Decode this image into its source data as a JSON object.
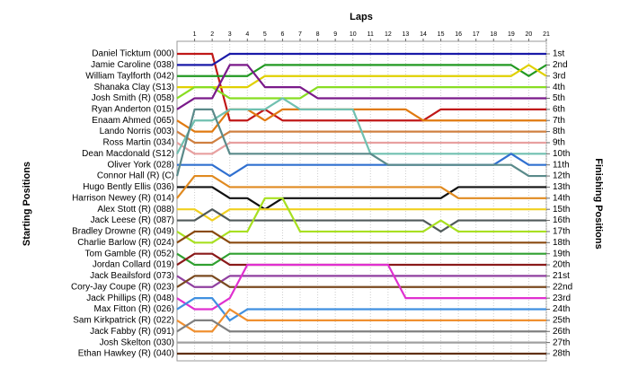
{
  "chart_data": {
    "type": "line",
    "title": "Laps",
    "y_label": "Starting Positions",
    "y2_label": "Finishing Positions",
    "x": [
      0,
      1,
      2,
      3,
      4,
      5,
      6,
      7,
      8,
      9,
      10,
      11,
      12,
      13,
      14,
      15,
      16,
      17,
      18,
      19,
      20,
      21
    ],
    "xlim": [
      0,
      21
    ],
    "xticks": [
      1,
      2,
      3,
      4,
      5,
      6,
      7,
      8,
      9,
      10,
      11,
      12,
      13,
      14,
      15,
      16,
      17,
      18,
      19,
      20,
      21
    ],
    "ylim": [
      1,
      28
    ],
    "grid": true,
    "y2ticks": [
      {
        "value": 1,
        "label": "1st"
      },
      {
        "value": 2,
        "label": "2nd"
      },
      {
        "value": 3,
        "label": "3rd"
      },
      {
        "value": 4,
        "label": "4th"
      },
      {
        "value": 5,
        "label": "5th"
      },
      {
        "value": 6,
        "label": "6th"
      },
      {
        "value": 7,
        "label": "7th"
      },
      {
        "value": 8,
        "label": "8th"
      },
      {
        "value": 9,
        "label": "9th"
      },
      {
        "value": 10,
        "label": "10th"
      },
      {
        "value": 11,
        "label": "11th"
      },
      {
        "value": 12,
        "label": "12th"
      },
      {
        "value": 13,
        "label": "13th"
      },
      {
        "value": 14,
        "label": "14th"
      },
      {
        "value": 15,
        "label": "15th"
      },
      {
        "value": 16,
        "label": "16th"
      },
      {
        "value": 17,
        "label": "17th"
      },
      {
        "value": 18,
        "label": "18th"
      },
      {
        "value": 19,
        "label": "19th"
      },
      {
        "value": 20,
        "label": "20th"
      },
      {
        "value": 21,
        "label": "21st"
      },
      {
        "value": 22,
        "label": "22nd"
      },
      {
        "value": 23,
        "label": "23rd"
      },
      {
        "value": 24,
        "label": "24th"
      },
      {
        "value": 25,
        "label": "25th"
      },
      {
        "value": 26,
        "label": "26th"
      },
      {
        "value": 27,
        "label": "27th"
      },
      {
        "value": 28,
        "label": "28th"
      }
    ],
    "series": [
      {
        "name": "Daniel Ticktum (000)",
        "color": "#c01818",
        "values": [
          1,
          1,
          1,
          7,
          7,
          6,
          7,
          7,
          7,
          7,
          7,
          7,
          7,
          7,
          7,
          6,
          6,
          6,
          6,
          6,
          6,
          6
        ]
      },
      {
        "name": "Jamie Caroline (038)",
        "color": "#1a1aa8",
        "values": [
          2,
          2,
          2,
          1,
          1,
          1,
          1,
          1,
          1,
          1,
          1,
          1,
          1,
          1,
          1,
          1,
          1,
          1,
          1,
          1,
          1,
          1
        ]
      },
      {
        "name": "William Taylforth (042)",
        "color": "#229922",
        "values": [
          3,
          3,
          3,
          3,
          3,
          2,
          2,
          2,
          2,
          2,
          2,
          2,
          2,
          2,
          2,
          2,
          2,
          2,
          2,
          2,
          3,
          2
        ]
      },
      {
        "name": "Shanaka Clay (S13)",
        "color": "#e0d000",
        "values": [
          4,
          4,
          4,
          4,
          4,
          3,
          3,
          3,
          3,
          3,
          3,
          3,
          3,
          3,
          3,
          3,
          3,
          3,
          3,
          3,
          2,
          3
        ]
      },
      {
        "name": "Josh Smith (R) (058)",
        "color": "#88dd22",
        "values": [
          5,
          4,
          4,
          5,
          5,
          5,
          5,
          5,
          4,
          4,
          4,
          4,
          4,
          4,
          4,
          4,
          4,
          4,
          4,
          4,
          4,
          4
        ]
      },
      {
        "name": "Ryan Anderton (015)",
        "color": "#7a1a8a",
        "values": [
          6,
          5,
          5,
          2,
          2,
          4,
          4,
          4,
          5,
          5,
          5,
          5,
          5,
          5,
          5,
          5,
          5,
          5,
          5,
          5,
          5,
          5
        ]
      },
      {
        "name": "Enaam Ahmed (065)",
        "color": "#e07a10",
        "values": [
          7,
          8,
          8,
          6,
          6,
          7,
          6,
          6,
          6,
          6,
          6,
          6,
          6,
          6,
          7,
          7,
          7,
          7,
          7,
          7,
          7,
          7
        ]
      },
      {
        "name": "Lando Norris (003)",
        "color": "#d08040",
        "values": [
          8,
          9,
          9,
          8,
          8,
          8,
          8,
          8,
          8,
          8,
          8,
          8,
          8,
          8,
          8,
          8,
          8,
          8,
          8,
          8,
          8,
          8
        ]
      },
      {
        "name": "Ross Martin (034)",
        "color": "#e8a0a0",
        "values": [
          9,
          10,
          10,
          9,
          9,
          9,
          9,
          9,
          9,
          9,
          9,
          9,
          9,
          9,
          9,
          9,
          9,
          9,
          9,
          9,
          9,
          9
        ]
      },
      {
        "name": "Dean Macdonald (S12)",
        "color": "#70c0b0",
        "values": [
          10,
          7,
          7,
          6,
          6,
          6,
          5,
          6,
          6,
          6,
          6,
          10,
          10,
          10,
          10,
          10,
          10,
          10,
          10,
          10,
          10,
          10
        ]
      },
      {
        "name": "Oliver York (028)",
        "color": "#3070d0",
        "values": [
          11,
          11,
          11,
          12,
          11,
          11,
          11,
          11,
          11,
          11,
          11,
          11,
          11,
          11,
          11,
          11,
          11,
          11,
          11,
          10,
          11,
          11
        ]
      },
      {
        "name": "Connor Hall (R) (C)",
        "color": "#5a8a8a",
        "values": [
          12,
          6,
          6,
          10,
          10,
          10,
          10,
          10,
          10,
          10,
          10,
          10,
          11,
          11,
          11,
          11,
          11,
          11,
          11,
          11,
          12,
          12
        ]
      },
      {
        "name": "Hugo Bently Ellis (036)",
        "color": "#111111",
        "values": [
          13,
          13,
          13,
          14,
          14,
          15,
          14,
          14,
          14,
          14,
          14,
          14,
          14,
          14,
          14,
          14,
          13,
          13,
          13,
          13,
          13,
          13
        ]
      },
      {
        "name": "Harrison Newey (R) (014)",
        "color": "#e08a20",
        "values": [
          14,
          12,
          12,
          13,
          13,
          13,
          13,
          13,
          13,
          13,
          13,
          13,
          13,
          13,
          13,
          13,
          14,
          14,
          14,
          14,
          14,
          14
        ]
      },
      {
        "name": "Alex Stott (R) (088)",
        "color": "#f0d020",
        "values": [
          15,
          15,
          16,
          15,
          15,
          15,
          15,
          15,
          15,
          15,
          15,
          15,
          15,
          15,
          15,
          15,
          15,
          15,
          15,
          15,
          15,
          15
        ]
      },
      {
        "name": "Jack Leese (R) (087)",
        "color": "#505a5a",
        "values": [
          16,
          16,
          15,
          16,
          16,
          16,
          16,
          16,
          16,
          16,
          16,
          16,
          16,
          16,
          16,
          17,
          16,
          16,
          16,
          16,
          16,
          16
        ]
      },
      {
        "name": "Bradley Drowne (R) (049)",
        "color": "#a8e020",
        "values": [
          17,
          18,
          18,
          17,
          17,
          14,
          14,
          17,
          17,
          17,
          17,
          17,
          17,
          17,
          17,
          16,
          17,
          17,
          17,
          17,
          17,
          17
        ]
      },
      {
        "name": "Charlie Barlow (R) (024)",
        "color": "#8a4a10",
        "values": [
          18,
          17,
          17,
          18,
          18,
          18,
          18,
          18,
          18,
          18,
          18,
          18,
          18,
          18,
          18,
          18,
          18,
          18,
          18,
          18,
          18,
          18
        ]
      },
      {
        "name": "Tom Gamble (R) (052)",
        "color": "#30a030",
        "values": [
          19,
          20,
          20,
          19,
          19,
          19,
          19,
          19,
          19,
          19,
          19,
          19,
          19,
          19,
          19,
          19,
          19,
          19,
          19,
          19,
          19,
          19
        ]
      },
      {
        "name": "Jordan Collard (019)",
        "color": "#8a1a1a",
        "values": [
          20,
          19,
          19,
          20,
          20,
          20,
          20,
          20,
          20,
          20,
          20,
          20,
          20,
          20,
          20,
          20,
          20,
          20,
          20,
          20,
          20,
          20
        ]
      },
      {
        "name": "Jack Beailsford (073)",
        "color": "#9040a0",
        "values": [
          21,
          22,
          22,
          21,
          21,
          21,
          21,
          21,
          21,
          21,
          21,
          21,
          21,
          21,
          21,
          21,
          21,
          21,
          21,
          21,
          21,
          21
        ]
      },
      {
        "name": "Cory-Jay Coupe (R) (023)",
        "color": "#7a4a20",
        "values": [
          22,
          21,
          21,
          22,
          22,
          22,
          22,
          22,
          22,
          22,
          22,
          22,
          22,
          22,
          22,
          22,
          22,
          22,
          22,
          22,
          22,
          22
        ]
      },
      {
        "name": "Jack Phillips (R) (048)",
        "color": "#e030d0",
        "values": [
          23,
          24,
          24,
          23,
          20,
          20,
          20,
          20,
          20,
          20,
          20,
          20,
          20,
          23,
          23,
          23,
          23,
          23,
          23,
          23,
          23,
          23
        ]
      },
      {
        "name": "Max Fitton (R) (026)",
        "color": "#4090e0",
        "values": [
          24,
          23,
          23,
          25,
          24,
          24,
          24,
          24,
          24,
          24,
          24,
          24,
          24,
          24,
          24,
          24,
          24,
          24,
          24,
          24,
          24,
          24
        ]
      },
      {
        "name": "Sam Kirkpatrick (R) (022)",
        "color": "#f09030",
        "values": [
          25,
          26,
          26,
          24,
          25,
          25,
          25,
          25,
          25,
          25,
          25,
          25,
          25,
          25,
          25,
          25,
          25,
          25,
          25,
          25,
          25,
          25
        ]
      },
      {
        "name": "Jack Fabby (R) (091)",
        "color": "#808080",
        "values": [
          26,
          25,
          25,
          26,
          26,
          26,
          26,
          26,
          26,
          26,
          26,
          26,
          26,
          26,
          26,
          26,
          26,
          26,
          26,
          26,
          26,
          26
        ]
      },
      {
        "name": "Josh Skelton (030)",
        "color": "#a0a0a0",
        "values": [
          27,
          27,
          27,
          27,
          27,
          27,
          27,
          27,
          27,
          27,
          27,
          27,
          27,
          27,
          27,
          27,
          27,
          27,
          27,
          27,
          27,
          27
        ]
      },
      {
        "name": "Ethan Hawkey (R) (040)",
        "color": "#603010",
        "values": [
          28,
          28,
          28,
          28,
          28,
          28,
          28,
          28,
          28,
          28,
          28,
          28,
          28,
          28,
          28,
          28,
          28,
          28,
          28,
          28,
          28,
          28
        ]
      }
    ]
  }
}
